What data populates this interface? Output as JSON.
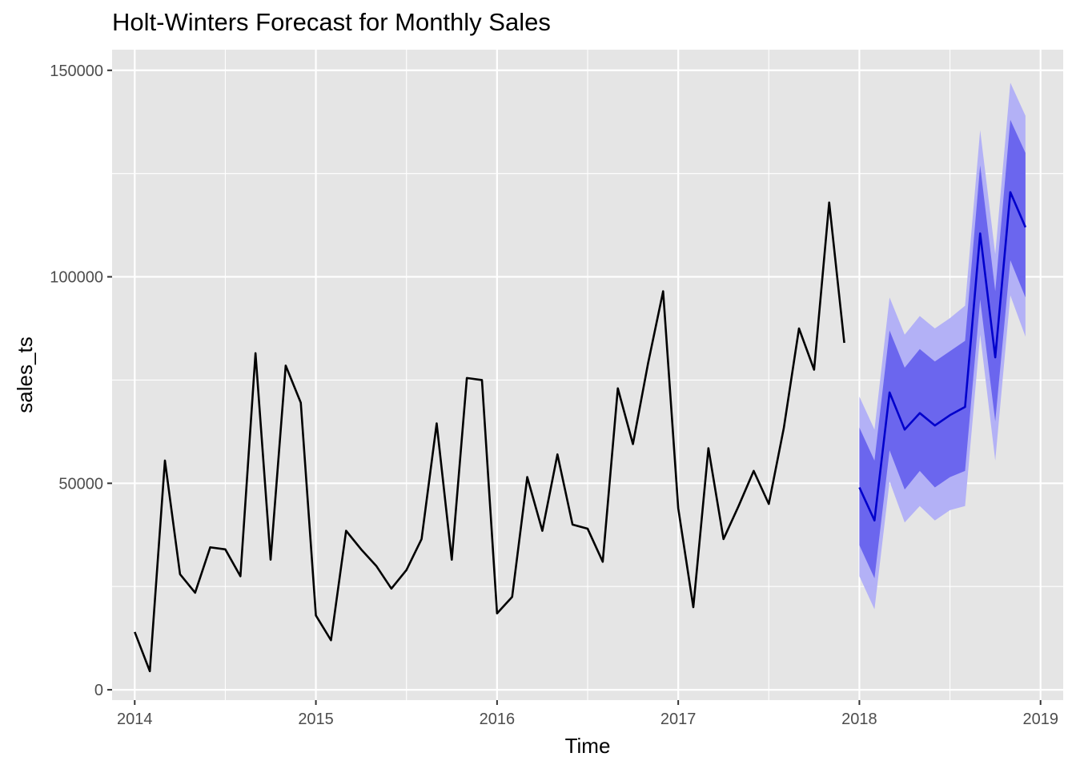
{
  "chart_data": {
    "type": "line",
    "title": "Holt-Winters Forecast for Monthly Sales",
    "xlabel": "Time",
    "ylabel": "sales_ts",
    "xlim": [
      2013.875,
      2019.125
    ],
    "ylim": [
      -2500,
      155000
    ],
    "x_ticks": [
      2014,
      2015,
      2016,
      2017,
      2018,
      2019
    ],
    "x_tick_labels": [
      "2014",
      "2015",
      "2016",
      "2017",
      "2018",
      "2019"
    ],
    "y_ticks": [
      0,
      50000,
      100000,
      150000
    ],
    "y_tick_labels": [
      "0",
      "50000",
      "100000",
      "150000"
    ],
    "grid": true,
    "colors": {
      "panel_background": "#e5e5e5",
      "grid": "#ffffff",
      "actual_line": "#000000",
      "forecast_line": "#0000cc",
      "band_80": "#6b66ee",
      "band_95": "#b3b1f6"
    },
    "series": [
      {
        "start": 2014,
        "frequency": 12,
        "values": [
          14000,
          4500,
          55500,
          28000,
          23500,
          34500,
          34000,
          27500,
          81500,
          31500,
          78500,
          69500,
          18000,
          12000,
          38500,
          34000,
          30000,
          24500,
          29000,
          36500,
          64500,
          31500,
          75500,
          75000,
          18500,
          22500,
          51500,
          38500,
          57000,
          40000,
          39000,
          31000,
          73000,
          59500,
          79000,
          96500,
          44000,
          20000,
          58500,
          36500,
          44500,
          53000,
          45000,
          63500,
          87500,
          77500,
          118000,
          84000
        ]
      },
      {
        "start": 2018,
        "frequency": 12,
        "values": [
          49000,
          41000,
          72000,
          63000,
          67000,
          64000,
          66500,
          68500,
          110500,
          80500,
          120500,
          112000
        ],
        "lower_80": [
          35000,
          27000,
          58000,
          48500,
          53000,
          49000,
          51500,
          53000,
          94500,
          65000,
          104000,
          95000
        ],
        "upper_80": [
          63500,
          55500,
          87000,
          78000,
          82500,
          79500,
          82000,
          84500,
          127000,
          96500,
          138000,
          130000
        ],
        "lower_95": [
          27500,
          19500,
          50500,
          40500,
          44500,
          41000,
          43500,
          44500,
          86000,
          55500,
          95500,
          85500
        ],
        "upper_95": [
          71000,
          63000,
          95000,
          86000,
          90500,
          87500,
          90000,
          93000,
          135500,
          105500,
          147000,
          139000
        ]
      }
    ]
  }
}
